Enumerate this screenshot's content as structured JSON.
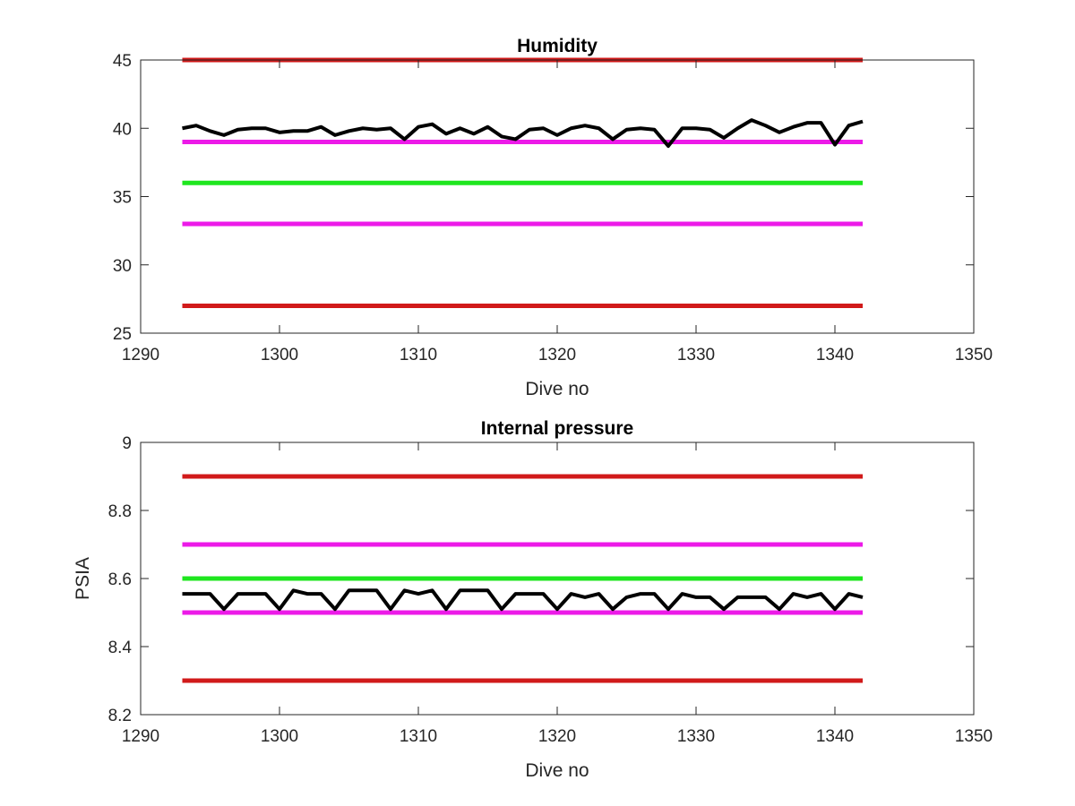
{
  "chart_data": [
    {
      "type": "line",
      "title": "Humidity",
      "xlabel": "Dive no",
      "ylabel": "",
      "xlim": [
        1290,
        1350
      ],
      "ylim": [
        25,
        45
      ],
      "xticks": [
        1290,
        1300,
        1310,
        1320,
        1330,
        1340,
        1350
      ],
      "yticks": [
        25,
        30,
        35,
        40,
        45
      ],
      "grid": false,
      "legend": "none",
      "threshold_lines": [
        {
          "y": 45,
          "x_range": [
            1293,
            1342
          ],
          "color": "#d11a1a"
        },
        {
          "y": 39,
          "x_range": [
            1293,
            1342
          ],
          "color": "#ec1ae8"
        },
        {
          "y": 36,
          "x_range": [
            1293,
            1342
          ],
          "color": "#1ee61e"
        },
        {
          "y": 33,
          "x_range": [
            1293,
            1342
          ],
          "color": "#ec1ae8"
        },
        {
          "y": 27,
          "x_range": [
            1293,
            1342
          ],
          "color": "#d11a1a"
        }
      ],
      "series": [
        {
          "color": "#000000",
          "x": [
            1293,
            1294,
            1295,
            1296,
            1297,
            1298,
            1299,
            1300,
            1301,
            1302,
            1303,
            1304,
            1305,
            1306,
            1307,
            1308,
            1309,
            1310,
            1311,
            1312,
            1313,
            1314,
            1315,
            1316,
            1317,
            1318,
            1319,
            1320,
            1321,
            1322,
            1323,
            1324,
            1325,
            1326,
            1327,
            1328,
            1329,
            1330,
            1331,
            1332,
            1333,
            1334,
            1335,
            1336,
            1337,
            1338,
            1339,
            1340,
            1341,
            1342
          ],
          "y": [
            40.0,
            40.2,
            39.8,
            39.5,
            39.9,
            40.0,
            40.0,
            39.7,
            39.8,
            39.8,
            40.1,
            39.5,
            39.8,
            40.0,
            39.9,
            40.0,
            39.2,
            40.1,
            40.3,
            39.6,
            40.0,
            39.6,
            40.1,
            39.4,
            39.2,
            39.9,
            40.0,
            39.5,
            40.0,
            40.2,
            40.0,
            39.2,
            39.9,
            40.0,
            39.9,
            38.7,
            40.0,
            40.0,
            39.9,
            39.3,
            40.0,
            40.6,
            40.2,
            39.7,
            40.1,
            40.4,
            40.4,
            38.8,
            40.2,
            40.5
          ]
        }
      ]
    },
    {
      "type": "line",
      "title": "Internal pressure",
      "xlabel": "Dive no",
      "ylabel": "PSIA",
      "xlim": [
        1290,
        1350
      ],
      "ylim": [
        8.2,
        9.0
      ],
      "xticks": [
        1290,
        1300,
        1310,
        1320,
        1330,
        1340,
        1350
      ],
      "yticks": [
        8.2,
        8.4,
        8.6,
        8.8,
        9.0
      ],
      "ytick_labels": [
        "8.2",
        "8.4",
        "8.6",
        "8.8",
        "9"
      ],
      "grid": false,
      "legend": "none",
      "threshold_lines": [
        {
          "y": 8.9,
          "x_range": [
            1293,
            1342
          ],
          "color": "#d11a1a"
        },
        {
          "y": 8.7,
          "x_range": [
            1293,
            1342
          ],
          "color": "#ec1ae8"
        },
        {
          "y": 8.6,
          "x_range": [
            1293,
            1342
          ],
          "color": "#1ee61e"
        },
        {
          "y": 8.5,
          "x_range": [
            1293,
            1342
          ],
          "color": "#ec1ae8"
        },
        {
          "y": 8.3,
          "x_range": [
            1293,
            1342
          ],
          "color": "#d11a1a"
        }
      ],
      "series": [
        {
          "color": "#000000",
          "x": [
            1293,
            1294,
            1295,
            1296,
            1297,
            1298,
            1299,
            1300,
            1301,
            1302,
            1303,
            1304,
            1305,
            1306,
            1307,
            1308,
            1309,
            1310,
            1311,
            1312,
            1313,
            1314,
            1315,
            1316,
            1317,
            1318,
            1319,
            1320,
            1321,
            1322,
            1323,
            1324,
            1325,
            1326,
            1327,
            1328,
            1329,
            1330,
            1331,
            1332,
            1333,
            1334,
            1335,
            1336,
            1337,
            1338,
            1339,
            1340,
            1341,
            1342
          ],
          "y": [
            8.555,
            8.555,
            8.555,
            8.51,
            8.555,
            8.555,
            8.555,
            8.51,
            8.565,
            8.555,
            8.555,
            8.51,
            8.565,
            8.565,
            8.565,
            8.51,
            8.565,
            8.555,
            8.565,
            8.51,
            8.565,
            8.565,
            8.565,
            8.51,
            8.555,
            8.555,
            8.555,
            8.51,
            8.555,
            8.545,
            8.555,
            8.51,
            8.545,
            8.555,
            8.555,
            8.51,
            8.555,
            8.545,
            8.545,
            8.51,
            8.545,
            8.545,
            8.545,
            8.51,
            8.555,
            8.545,
            8.555,
            8.51,
            8.555,
            8.545
          ]
        }
      ]
    }
  ]
}
